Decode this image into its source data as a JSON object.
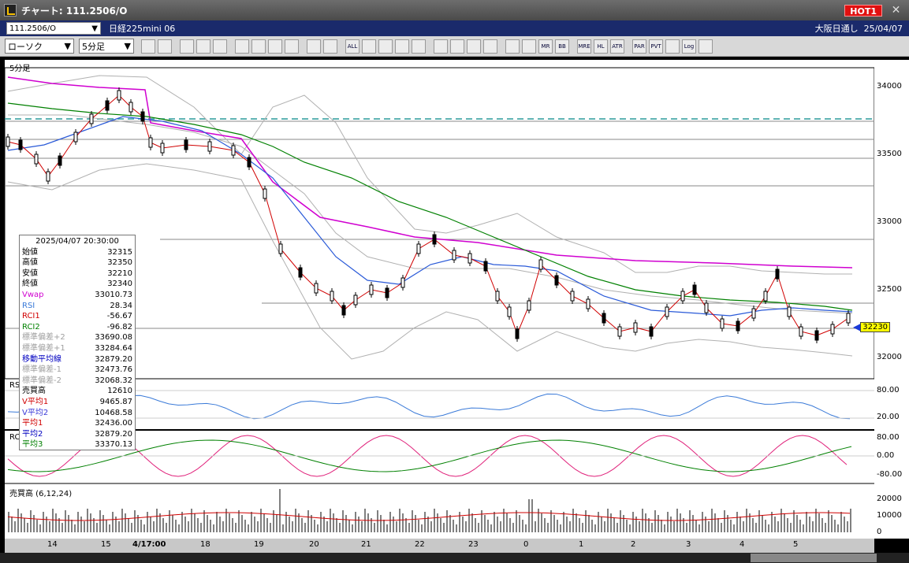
{
  "window": {
    "title": "チャート: 111.2506/O",
    "hot_button": "HOT1",
    "close_glyph": "✕"
  },
  "info": {
    "symbol_code": "111.2506/O",
    "symbol_name": "日経225mini 06",
    "market": "大阪日通し",
    "date": "25/04/07"
  },
  "toolbar": {
    "chart_type": "ローソク",
    "interval": "5分足",
    "buttons": [
      "",
      "",
      "",
      "",
      "",
      "",
      "",
      "",
      "",
      "",
      "",
      "ALL",
      "",
      "",
      "",
      "",
      "",
      "",
      "",
      "",
      "",
      "",
      "MR",
      "BB",
      "MRE",
      "HL",
      "ATR",
      "PAR",
      "PVT",
      "",
      "Log",
      ""
    ]
  },
  "chart": {
    "period_label": "5分足",
    "price_ticks": [
      "34000",
      "33500",
      "33000",
      "32500",
      "32000"
    ],
    "current_price_tag": "32230",
    "rsi_label": "RSI",
    "rsi_ticks": [
      "80.00",
      "20.00"
    ],
    "rci_label": "RCI",
    "rci_ticks": [
      "80.00",
      "0.00",
      "-80.00"
    ],
    "volume_label": "売買高 (6,12,24)",
    "volume_ticks": [
      "20000",
      "10000",
      "0"
    ],
    "dates": [
      "14",
      "15",
      "4/17:00",
      "18",
      "19",
      "20",
      "21",
      "22",
      "23",
      "0",
      "1",
      "2",
      "3",
      "4",
      "5"
    ]
  },
  "data_box": {
    "datetime": "2025/04/07  20:30:00",
    "rows": [
      {
        "label": "始値",
        "value": "32315",
        "color": "#000000"
      },
      {
        "label": "高値",
        "value": "32350",
        "color": "#000000"
      },
      {
        "label": "安値",
        "value": "32210",
        "color": "#000000"
      },
      {
        "label": "終値",
        "value": "32340",
        "color": "#000000"
      },
      {
        "label": "Vwap",
        "value": "33010.73",
        "color": "#d000d0"
      },
      {
        "label": "RSI",
        "value": "28.34",
        "color": "#3a7ad8"
      },
      {
        "label": "RCI1",
        "value": "-56.67",
        "color": "#d00000"
      },
      {
        "label": "RCI2",
        "value": "-96.82",
        "color": "#008000"
      },
      {
        "label": "標準偏差+2",
        "value": "33690.08",
        "color": "#a0a0a0"
      },
      {
        "label": "標準偏差+1",
        "value": "33284.64",
        "color": "#a0a0a0"
      },
      {
        "label": "移動平均線",
        "value": "32879.20",
        "color": "#0000c0"
      },
      {
        "label": "標準偏差-1",
        "value": "32473.76",
        "color": "#a0a0a0"
      },
      {
        "label": "標準偏差-2",
        "value": "32068.32",
        "color": "#a0a0a0"
      },
      {
        "label": "売買高",
        "value": "12610",
        "color": "#000000"
      },
      {
        "label": "V平均1",
        "value": "9465.87",
        "color": "#d00000"
      },
      {
        "label": "V平均2",
        "value": "10468.58",
        "color": "#3a3ad8"
      },
      {
        "label": "平均1",
        "value": "32436.00",
        "color": "#d00000"
      },
      {
        "label": "平均2",
        "value": "32879.20",
        "color": "#0000c0"
      },
      {
        "label": "平均3",
        "value": "33370.13",
        "color": "#008000"
      }
    ]
  }
}
